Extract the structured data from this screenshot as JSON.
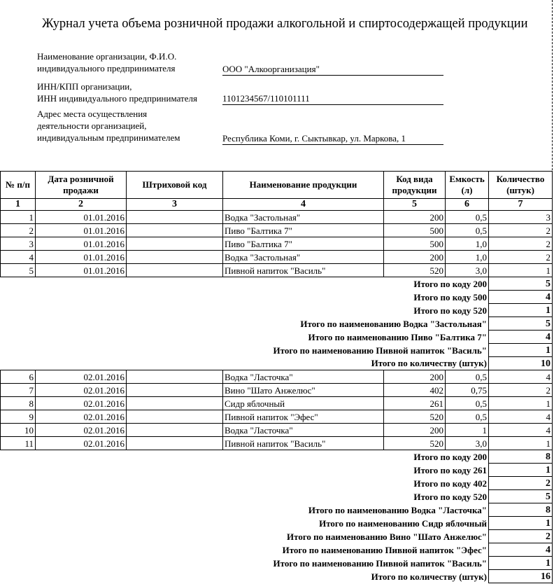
{
  "title": "Журнал учета объема розничной продажи алкогольной и спиртосодержащей продукции",
  "org": {
    "label1": "Наименование организации, Ф.И.О.",
    "label2": "индивидуального предпринимателя",
    "value": "ООО \"Алкоорганизация\""
  },
  "inn": {
    "label1": "ИНН/КПП организации,",
    "label2": "ИНН индивидуального предпринимателя",
    "value": "1101234567/110101111"
  },
  "address": {
    "label1": "Адрес места осуществления",
    "label2": "деятельности организацией,",
    "label3": "индивидуальным предпринимателем",
    "value": "Республика Коми, г. Сыктывкар, ул. Маркова, 1"
  },
  "columns": [
    "№ п/п",
    "Дата розничной продажи",
    "Штриховой код",
    "Наименование продукции",
    "Код вида продукции",
    "Емкость (л)",
    "Количество (штук)"
  ],
  "column_numbers": [
    "1",
    "2",
    "3",
    "4",
    "5",
    "6",
    "7"
  ],
  "block1": {
    "rows": [
      [
        "1",
        "01.01.2016",
        "",
        "Водка \"Застольная\"",
        "200",
        "0,5",
        "3"
      ],
      [
        "2",
        "01.01.2016",
        "",
        "Пиво \"Балтика 7\"",
        "500",
        "0,5",
        "2"
      ],
      [
        "3",
        "01.01.2016",
        "",
        "Пиво \"Балтика 7\"",
        "500",
        "1,0",
        "2"
      ],
      [
        "4",
        "01.01.2016",
        "",
        "Водка \"Застольная\"",
        "200",
        "1,0",
        "2"
      ],
      [
        "5",
        "01.01.2016",
        "",
        "Пивной напиток \"Василь\"",
        "520",
        "3,0",
        "1"
      ]
    ],
    "totals": [
      [
        "Итого по коду 200",
        "5"
      ],
      [
        "Итого по коду 500",
        "4"
      ],
      [
        "Итого по коду 520",
        "1"
      ],
      [
        "Итого по наименованию Водка \"Застольная\"",
        "5"
      ],
      [
        "Итого по наименованию Пиво \"Балтика 7\"",
        "4"
      ],
      [
        "Итого по наименованию Пивной напиток \"Василь\"",
        "1"
      ],
      [
        "Итого по количеству (штук)",
        "10"
      ]
    ]
  },
  "block2": {
    "rows": [
      [
        "6",
        "02.01.2016",
        "",
        "Водка \"Ласточка\"",
        "200",
        "0,5",
        "4"
      ],
      [
        "7",
        "02.01.2016",
        "",
        "Вино \"Шато Анжелюс\"",
        "402",
        "0,75",
        "2"
      ],
      [
        "8",
        "02.01.2016",
        "",
        "Сидр яблочный",
        "261",
        "0,5",
        "1"
      ],
      [
        "9",
        "02.01.2016",
        "",
        "Пивной напиток \"Эфес\"",
        "520",
        "0,5",
        "4"
      ],
      [
        "10",
        "02.01.2016",
        "",
        "Водка \"Ласточка\"",
        "200",
        "1",
        "4"
      ],
      [
        "11",
        "02.01.2016",
        "",
        "Пивной напиток \"Василь\"",
        "520",
        "3,0",
        "1"
      ]
    ],
    "totals": [
      [
        "Итого по коду 200",
        "8"
      ],
      [
        "Итого по коду 261",
        "1"
      ],
      [
        "Итого по коду 402",
        "2"
      ],
      [
        "Итого по коду 520",
        "5"
      ],
      [
        "Итого по наименованию Водка \"Ласточка\"",
        "8"
      ],
      [
        "Итого по наименованию Сидр яблочный",
        "1"
      ],
      [
        "Итого по наименованию Вино \"Шато Анжелюс\"",
        "2"
      ],
      [
        "Итого по наименованию Пивной напиток \"Эфес\"",
        "4"
      ],
      [
        "Итого по наименованию Пивной напиток \"Василь\"",
        "1"
      ],
      [
        "Итого по количеству (штук)",
        "16"
      ]
    ]
  }
}
